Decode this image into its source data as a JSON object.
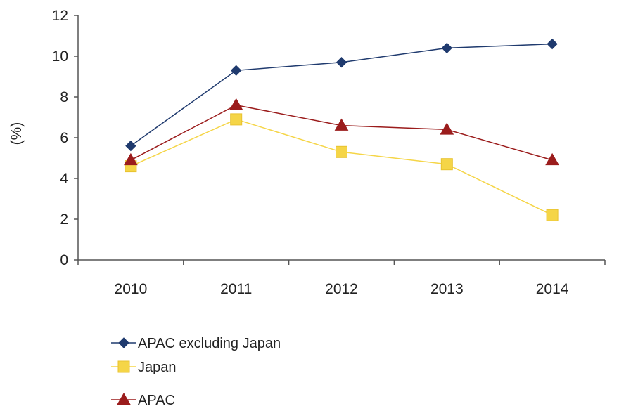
{
  "chart_data": {
    "type": "line",
    "categories": [
      "2010",
      "2011",
      "2012",
      "2013",
      "2014"
    ],
    "ylabel": "(%)",
    "ylim": [
      0,
      12
    ],
    "yticks": [
      0,
      2,
      4,
      6,
      8,
      10,
      12
    ],
    "grid": false,
    "legend_position": "bottom-left",
    "series": [
      {
        "name": "APAC excluding Japan",
        "values": [
          5.6,
          9.3,
          9.7,
          10.4,
          10.6
        ],
        "color": "#1F3A6E",
        "marker": "diamond"
      },
      {
        "name": "Japan",
        "values": [
          4.6,
          6.9,
          5.3,
          4.7,
          2.2
        ],
        "color": "#F5D547",
        "marker": "square"
      },
      {
        "name": "APAC",
        "values": [
          4.9,
          7.6,
          6.6,
          6.4,
          4.9
        ],
        "color": "#9B1C1C",
        "marker": "triangle"
      }
    ]
  }
}
